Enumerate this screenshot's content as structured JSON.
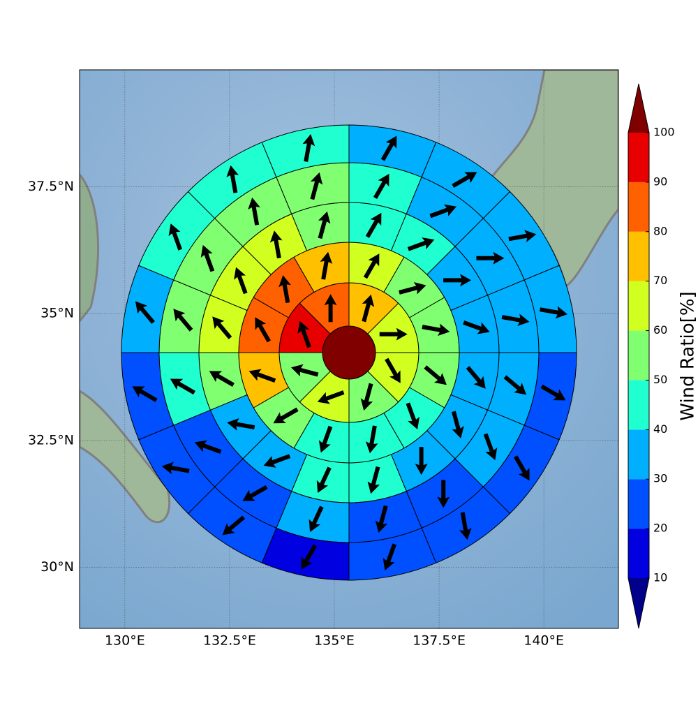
{
  "chart_data": {
    "type": "polar-sector-map",
    "xlim": [
      128.92,
      141.78
    ],
    "ylim": [
      28.8,
      39.8
    ],
    "xticks": [
      {
        "value": 130,
        "label": "130°E"
      },
      {
        "value": 132.5,
        "label": "132.5°E"
      },
      {
        "value": 135,
        "label": "135°E"
      },
      {
        "value": 137.5,
        "label": "137.5°E"
      },
      {
        "value": 140,
        "label": "140°E"
      }
    ],
    "yticks": [
      {
        "value": 30,
        "label": "30°N"
      },
      {
        "value": 32.5,
        "label": "32.5°N"
      },
      {
        "value": 35,
        "label": "35°N"
      },
      {
        "value": 37.5,
        "label": "37.5°N"
      }
    ],
    "grid": true,
    "colorbar": {
      "label": "Wind Ratio[%]",
      "levels": [
        10,
        20,
        30,
        40,
        50,
        60,
        70,
        80,
        90,
        100
      ],
      "colors": [
        "#0000e0",
        "#0050ff",
        "#00b0ff",
        "#20ffd0",
        "#80ff70",
        "#d0ff20",
        "#ffc000",
        "#ff6000",
        "#e80000"
      ],
      "under_color": "#00008b",
      "over_color": "#800000"
    },
    "center": {
      "value": 100
    },
    "rings": [
      {
        "values": [
          75,
          65,
          65,
          55,
          65,
          55,
          95,
          85
        ],
        "directions": [
          15,
          90,
          150,
          195,
          250,
          285,
          340,
          0
        ]
      },
      {
        "values": [
          65,
          55,
          55,
          55,
          45,
          45,
          45,
          55,
          75,
          85,
          85,
          75
        ],
        "directions": [
          30,
          75,
          100,
          130,
          160,
          190,
          200,
          240,
          290,
          330,
          350,
          10
        ]
      },
      {
        "values": [
          45,
          45,
          35,
          35,
          35,
          35,
          35,
          45,
          45,
          35,
          35,
          55,
          65,
          65,
          65,
          55
        ],
        "directions": [
          30,
          70,
          90,
          110,
          140,
          165,
          180,
          195,
          205,
          250,
          280,
          300,
          320,
          340,
          350,
          15
        ]
      },
      {
        "values": [
          45,
          35,
          35,
          35,
          35,
          35,
          25,
          25,
          35,
          25,
          25,
          45,
          55,
          55,
          55,
          55
        ],
        "directions": [
          30,
          70,
          90,
          100,
          130,
          160,
          180,
          195,
          205,
          240,
          290,
          300,
          320,
          340,
          350,
          15
        ]
      },
      {
        "values": [
          35,
          35,
          35,
          35,
          25,
          25,
          25,
          25,
          15,
          25,
          25,
          25,
          35,
          45,
          45,
          45
        ],
        "directions": [
          30,
          60,
          80,
          100,
          120,
          150,
          170,
          200,
          210,
          230,
          280,
          300,
          320,
          340,
          350,
          10
        ]
      }
    ]
  }
}
